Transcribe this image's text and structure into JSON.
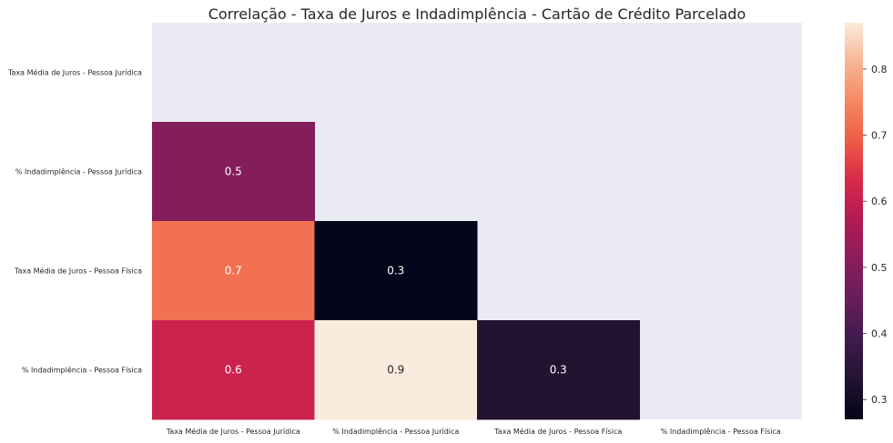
{
  "chart_data": {
    "type": "heatmap",
    "title": "Correlação - Taxa de Juros e Indadimplência - Cartão de Crédito Parcelado",
    "row_labels": [
      "Taxa Média de Juros - Pessoa Jurídica",
      "% Indadimplência - Pessoa Jurídica",
      "Taxa Média de Juros - Pessoa Física",
      "% Indadimplência - Pessoa Física"
    ],
    "col_labels": [
      "Taxa Média de Juros - Pessoa Jurídica",
      "% Indadimplência - Pessoa Jurídica",
      "Taxa Média de Juros - Pessoa Física",
      "% Indadimplência - Pessoa Física"
    ],
    "values": [
      [
        null,
        null,
        null,
        null
      ],
      [
        0.5,
        null,
        null,
        null
      ],
      [
        0.72,
        0.27,
        null,
        null
      ],
      [
        0.61,
        0.87,
        0.33,
        null
      ]
    ],
    "annotations": [
      [
        null,
        null,
        null,
        null
      ],
      [
        "0.5",
        null,
        null,
        null
      ],
      [
        "0.7",
        "0.3",
        null,
        null
      ],
      [
        "0.6",
        "0.9",
        "0.3",
        null
      ]
    ],
    "colorbar": {
      "min": 0.27,
      "max": 0.87,
      "ticks": [
        "0.3",
        "0.4",
        "0.5",
        "0.6",
        "0.7",
        "0.8"
      ],
      "colormap": "rocket"
    },
    "mask": "upper-triangle-including-diagonal",
    "background_color": "#eaeaf2"
  }
}
